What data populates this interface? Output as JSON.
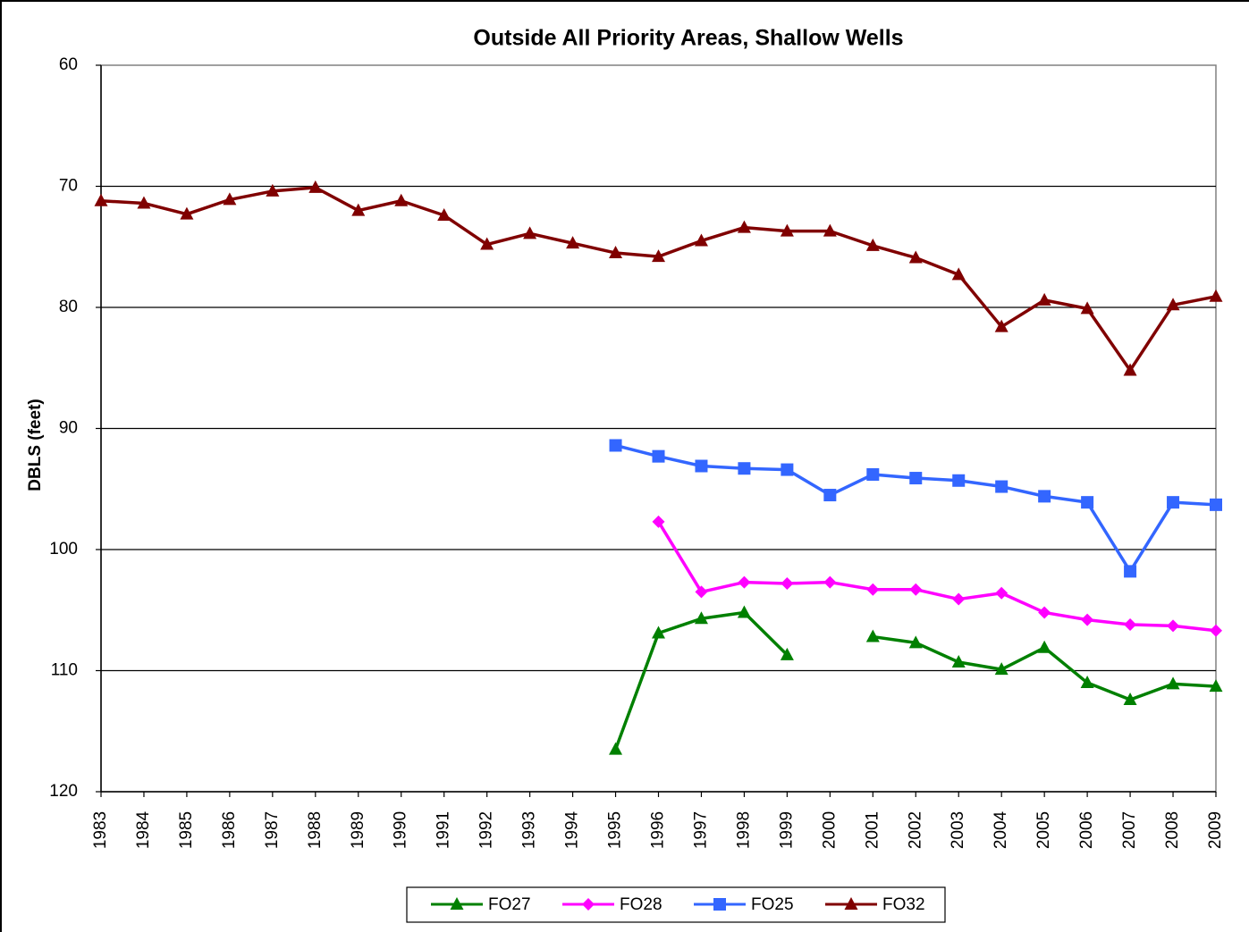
{
  "chart_data": {
    "type": "line",
    "title": "Outside All Priority Areas, Shallow Wells",
    "y_label": "DBLS (feet)",
    "categories": [
      "1983",
      "1984",
      "1985",
      "1986",
      "1987",
      "1988",
      "1989",
      "1990",
      "1991",
      "1992",
      "1993",
      "1994",
      "1995",
      "1996",
      "1997",
      "1998",
      "1999",
      "2000",
      "2001",
      "2002",
      "2003",
      "2004",
      "2005",
      "2006",
      "2007",
      "2008",
      "2009"
    ],
    "series": [
      {
        "name": "FO27",
        "color": "#008000",
        "marker": "triangle",
        "values": [
          null,
          null,
          null,
          null,
          null,
          null,
          null,
          null,
          null,
          null,
          null,
          null,
          116.5,
          106.9,
          105.7,
          105.2,
          108.7,
          null,
          107.2,
          107.7,
          109.3,
          109.9,
          108.1,
          111.0,
          112.4,
          111.1,
          111.3
        ]
      },
      {
        "name": "FO28",
        "color": "#ff00ff",
        "marker": "diamond",
        "values": [
          null,
          null,
          null,
          null,
          null,
          null,
          null,
          null,
          null,
          null,
          null,
          null,
          null,
          97.7,
          103.5,
          102.7,
          102.8,
          102.7,
          103.3,
          103.3,
          104.1,
          103.6,
          105.2,
          105.8,
          106.2,
          106.3,
          106.7
        ]
      },
      {
        "name": "FO25",
        "color": "#3366ff",
        "marker": "square",
        "values": [
          null,
          null,
          null,
          null,
          null,
          null,
          null,
          null,
          null,
          null,
          null,
          null,
          91.4,
          92.3,
          93.1,
          93.3,
          93.4,
          95.5,
          93.8,
          94.1,
          94.3,
          94.8,
          95.6,
          96.1,
          101.8,
          96.1,
          96.3
        ]
      },
      {
        "name": "FO32",
        "color": "#800000",
        "marker": "triangle",
        "values": [
          71.2,
          71.4,
          72.3,
          71.1,
          70.4,
          70.1,
          72.0,
          71.2,
          72.4,
          74.8,
          73.9,
          74.7,
          75.5,
          75.8,
          74.5,
          73.4,
          73.7,
          73.7,
          74.9,
          75.9,
          77.3,
          81.6,
          79.4,
          80.1,
          85.2,
          79.8,
          79.1
        ]
      }
    ],
    "ylim": [
      60,
      120
    ],
    "y_reversed": true,
    "yticks": [
      60,
      70,
      80,
      90,
      100,
      110,
      120
    ],
    "grid": true,
    "legend": "bottom"
  }
}
